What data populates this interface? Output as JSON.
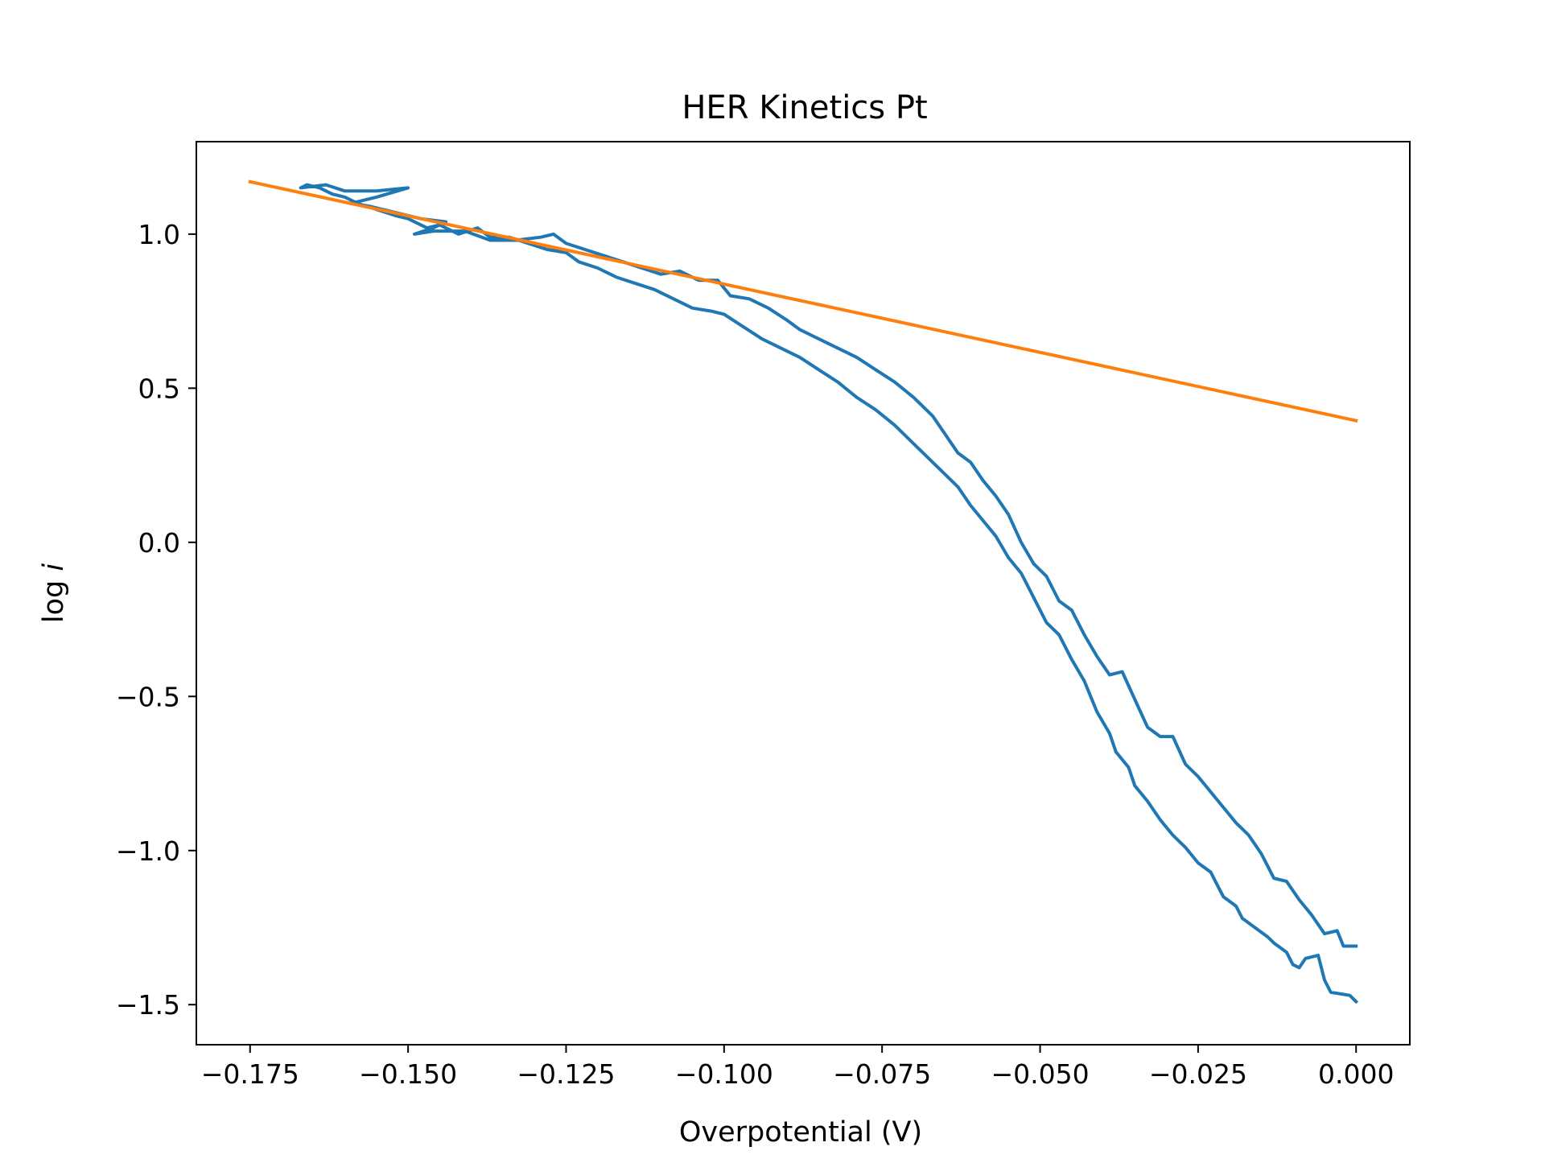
{
  "chart_data": {
    "type": "line",
    "title": "HER Kinetics Pt",
    "xlabel": "Overpotential (V)",
    "ylabel": "log i",
    "xlim": [
      -0.1835,
      0.0085
    ],
    "ylim": [
      -1.63,
      1.3
    ],
    "grid": false,
    "legend": "none",
    "xticks": [
      -0.175,
      -0.15,
      -0.125,
      -0.1,
      -0.075,
      -0.05,
      -0.025,
      0.0
    ],
    "xtick_labels": [
      "−0.175",
      "−0.150",
      "−0.125",
      "−0.100",
      "−0.075",
      "−0.050",
      "−0.025",
      "0.000"
    ],
    "yticks": [
      -1.5,
      -1.0,
      -0.5,
      0.0,
      0.5,
      1.0
    ],
    "ytick_labels": [
      "−1.5",
      "−1.0",
      "−0.5",
      "0.0",
      "0.5",
      "1.0"
    ],
    "series": [
      {
        "color": "#1f77b4",
        "points": [
          [
            0.0,
            -1.49
          ],
          [
            -0.001,
            -1.47
          ],
          [
            -0.004,
            -1.46
          ],
          [
            -0.005,
            -1.42
          ],
          [
            -0.006,
            -1.34
          ],
          [
            -0.008,
            -1.35
          ],
          [
            -0.009,
            -1.38
          ],
          [
            -0.01,
            -1.37
          ],
          [
            -0.011,
            -1.33
          ],
          [
            -0.013,
            -1.3
          ],
          [
            -0.014,
            -1.28
          ],
          [
            -0.016,
            -1.25
          ],
          [
            -0.018,
            -1.22
          ],
          [
            -0.019,
            -1.18
          ],
          [
            -0.021,
            -1.15
          ],
          [
            -0.022,
            -1.11
          ],
          [
            -0.023,
            -1.07
          ],
          [
            -0.025,
            -1.04
          ],
          [
            -0.027,
            -0.99
          ],
          [
            -0.029,
            -0.95
          ],
          [
            -0.031,
            -0.9
          ],
          [
            -0.033,
            -0.84
          ],
          [
            -0.035,
            -0.79
          ],
          [
            -0.036,
            -0.73
          ],
          [
            -0.038,
            -0.68
          ],
          [
            -0.039,
            -0.62
          ],
          [
            -0.041,
            -0.55
          ],
          [
            -0.043,
            -0.45
          ],
          [
            -0.045,
            -0.38
          ],
          [
            -0.047,
            -0.3
          ],
          [
            -0.049,
            -0.26
          ],
          [
            -0.051,
            -0.18
          ],
          [
            -0.053,
            -0.1
          ],
          [
            -0.055,
            -0.05
          ],
          [
            -0.057,
            0.02
          ],
          [
            -0.059,
            0.07
          ],
          [
            -0.061,
            0.12
          ],
          [
            -0.063,
            0.18
          ],
          [
            -0.065,
            0.22
          ],
          [
            -0.067,
            0.26
          ],
          [
            -0.07,
            0.32
          ],
          [
            -0.073,
            0.38
          ],
          [
            -0.076,
            0.43
          ],
          [
            -0.079,
            0.47
          ],
          [
            -0.082,
            0.52
          ],
          [
            -0.085,
            0.56
          ],
          [
            -0.088,
            0.6
          ],
          [
            -0.091,
            0.63
          ],
          [
            -0.094,
            0.66
          ],
          [
            -0.097,
            0.7
          ],
          [
            -0.1,
            0.74
          ],
          [
            -0.102,
            0.75
          ],
          [
            -0.105,
            0.76
          ],
          [
            -0.108,
            0.79
          ],
          [
            -0.111,
            0.82
          ],
          [
            -0.114,
            0.84
          ],
          [
            -0.117,
            0.86
          ],
          [
            -0.12,
            0.89
          ],
          [
            -0.123,
            0.91
          ],
          [
            -0.125,
            0.94
          ],
          [
            -0.128,
            0.95
          ],
          [
            -0.131,
            0.97
          ],
          [
            -0.134,
            0.99
          ],
          [
            -0.137,
            0.99
          ],
          [
            -0.139,
            1.02
          ],
          [
            -0.142,
            1.0
          ],
          [
            -0.145,
            1.03
          ],
          [
            -0.147,
            1.02
          ],
          [
            -0.15,
            1.05
          ],
          [
            -0.152,
            1.06
          ],
          [
            -0.155,
            1.08
          ],
          [
            -0.158,
            1.1
          ],
          [
            -0.16,
            1.12
          ],
          [
            -0.162,
            1.13
          ],
          [
            -0.164,
            1.15
          ],
          [
            -0.166,
            1.16
          ],
          [
            -0.167,
            1.15
          ],
          [
            -0.163,
            1.16
          ],
          [
            -0.16,
            1.14
          ],
          [
            -0.155,
            1.14
          ],
          [
            -0.15,
            1.15
          ],
          [
            -0.155,
            1.12
          ],
          [
            -0.159,
            1.1
          ],
          [
            -0.156,
            1.09
          ],
          [
            -0.152,
            1.07
          ],
          [
            -0.148,
            1.05
          ],
          [
            -0.144,
            1.04
          ],
          [
            -0.146,
            1.02
          ],
          [
            -0.149,
            1.0
          ],
          [
            -0.146,
            1.01
          ],
          [
            -0.141,
            1.01
          ],
          [
            -0.137,
            0.98
          ],
          [
            -0.133,
            0.98
          ],
          [
            -0.129,
            0.99
          ],
          [
            -0.127,
            1.0
          ],
          [
            -0.125,
            0.97
          ],
          [
            -0.122,
            0.95
          ],
          [
            -0.119,
            0.93
          ],
          [
            -0.116,
            0.91
          ],
          [
            -0.113,
            0.89
          ],
          [
            -0.11,
            0.87
          ],
          [
            -0.107,
            0.88
          ],
          [
            -0.104,
            0.85
          ],
          [
            -0.101,
            0.85
          ],
          [
            -0.099,
            0.8
          ],
          [
            -0.096,
            0.79
          ],
          [
            -0.093,
            0.76
          ],
          [
            -0.09,
            0.72
          ],
          [
            -0.088,
            0.69
          ],
          [
            -0.085,
            0.66
          ],
          [
            -0.082,
            0.63
          ],
          [
            -0.079,
            0.6
          ],
          [
            -0.076,
            0.56
          ],
          [
            -0.073,
            0.52
          ],
          [
            -0.07,
            0.47
          ],
          [
            -0.067,
            0.41
          ],
          [
            -0.065,
            0.35
          ],
          [
            -0.063,
            0.29
          ],
          [
            -0.061,
            0.26
          ],
          [
            -0.059,
            0.2
          ],
          [
            -0.057,
            0.15
          ],
          [
            -0.055,
            0.09
          ],
          [
            -0.053,
            0.0
          ],
          [
            -0.051,
            -0.07
          ],
          [
            -0.049,
            -0.11
          ],
          [
            -0.047,
            -0.19
          ],
          [
            -0.045,
            -0.22
          ],
          [
            -0.043,
            -0.3
          ],
          [
            -0.041,
            -0.37
          ],
          [
            -0.039,
            -0.43
          ],
          [
            -0.037,
            -0.42
          ],
          [
            -0.035,
            -0.51
          ],
          [
            -0.033,
            -0.6
          ],
          [
            -0.031,
            -0.63
          ],
          [
            -0.029,
            -0.63
          ],
          [
            -0.027,
            -0.72
          ],
          [
            -0.025,
            -0.76
          ],
          [
            -0.023,
            -0.81
          ],
          [
            -0.021,
            -0.86
          ],
          [
            -0.019,
            -0.91
          ],
          [
            -0.017,
            -0.95
          ],
          [
            -0.015,
            -1.01
          ],
          [
            -0.013,
            -1.09
          ],
          [
            -0.011,
            -1.1
          ],
          [
            -0.009,
            -1.16
          ],
          [
            -0.007,
            -1.21
          ],
          [
            -0.005,
            -1.27
          ],
          [
            -0.003,
            -1.26
          ],
          [
            -0.002,
            -1.31
          ],
          [
            0.0,
            -1.31
          ]
        ]
      },
      {
        "color": "#ff7f0e",
        "points": [
          [
            -0.175,
            1.17
          ],
          [
            0.0,
            0.395
          ]
        ]
      }
    ]
  }
}
